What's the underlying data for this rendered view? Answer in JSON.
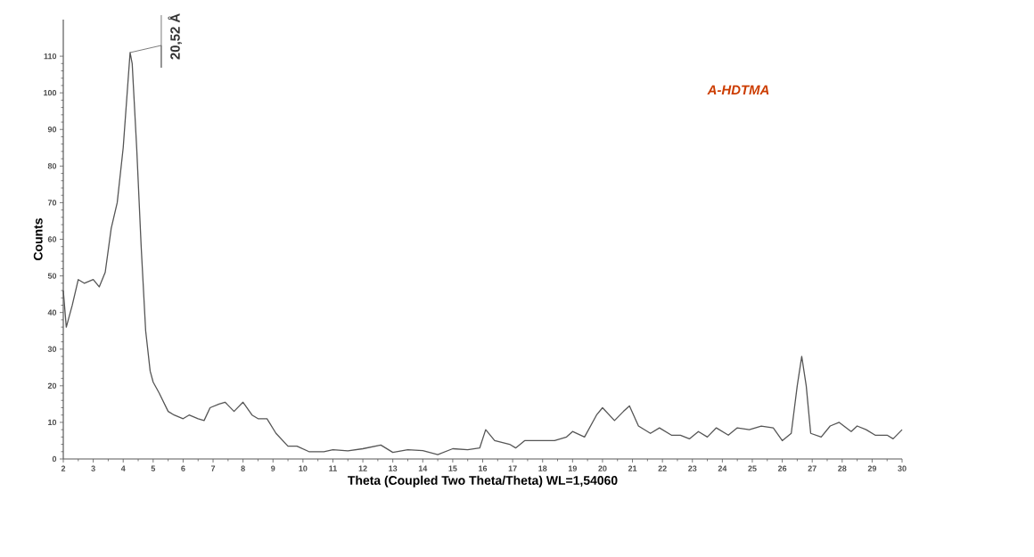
{
  "chart_data": {
    "type": "line",
    "title": "A-HDTMA",
    "xlabel": "Theta (Coupled Two Theta/Theta) WL=1,54060",
    "ylabel": "Counts",
    "xlim": [
      2,
      30
    ],
    "ylim": [
      0,
      120
    ],
    "xticks": [
      2,
      3,
      4,
      5,
      6,
      7,
      8,
      9,
      10,
      11,
      12,
      13,
      14,
      15,
      16,
      17,
      18,
      19,
      20,
      21,
      22,
      23,
      24,
      25,
      26,
      27,
      28,
      29,
      30
    ],
    "yticks": [
      0,
      10,
      20,
      30,
      40,
      50,
      60,
      70,
      80,
      90,
      100,
      110
    ],
    "grid": false,
    "marker": "none",
    "line_style": "solid",
    "annotations": [
      {
        "text": "20,52 Å",
        "x": 4.23,
        "y": 111
      }
    ],
    "series": [
      {
        "color": "#555555",
        "x": [
          2.0,
          2.1,
          2.3,
          2.5,
          2.7,
          3.0,
          3.2,
          3.4,
          3.6,
          3.8,
          4.0,
          4.23,
          4.3,
          4.45,
          4.6,
          4.75,
          4.9,
          5.0,
          5.2,
          5.5,
          5.7,
          6.0,
          6.2,
          6.5,
          6.7,
          6.9,
          7.2,
          7.4,
          7.7,
          8.0,
          8.3,
          8.5,
          8.8,
          9.1,
          9.5,
          9.8,
          10.2,
          10.7,
          11.0,
          11.5,
          12.0,
          12.6,
          13.0,
          13.5,
          14.0,
          14.5,
          15.0,
          15.5,
          15.9,
          16.1,
          16.4,
          16.9,
          17.1,
          17.4,
          17.8,
          18.4,
          18.8,
          19.0,
          19.4,
          19.8,
          20.0,
          20.4,
          20.7,
          20.9,
          21.2,
          21.6,
          21.9,
          22.3,
          22.6,
          22.9,
          23.2,
          23.5,
          23.8,
          24.2,
          24.5,
          24.9,
          25.3,
          25.7,
          26.0,
          26.3,
          26.5,
          26.65,
          26.8,
          26.95,
          27.3,
          27.6,
          27.9,
          28.3,
          28.5,
          28.8,
          29.1,
          29.5,
          29.7,
          30.0
        ],
        "values": [
          46,
          36,
          42,
          49,
          48,
          49,
          47,
          51,
          63,
          70,
          85,
          111,
          108,
          85,
          58,
          35,
          24,
          21,
          18,
          13,
          12,
          11,
          12,
          11,
          10.5,
          14,
          15,
          15.5,
          13,
          15.5,
          12,
          11,
          11,
          7,
          3.5,
          3.5,
          2,
          2,
          2.5,
          2.2,
          2.8,
          3.8,
          1.8,
          2.5,
          2.3,
          1.2,
          2.8,
          2.5,
          3,
          8,
          5,
          4,
          3,
          5,
          5,
          5,
          6,
          7.5,
          6,
          12,
          14,
          10.5,
          13,
          14.5,
          9,
          7,
          8.5,
          6.5,
          6.5,
          5.5,
          7.5,
          6,
          8.5,
          6.5,
          8.5,
          8,
          9,
          8.5,
          5,
          7,
          20,
          28,
          20,
          7,
          6,
          9,
          10,
          7.5,
          9,
          8,
          6.5,
          6.5,
          5.5,
          8
        ]
      }
    ]
  }
}
